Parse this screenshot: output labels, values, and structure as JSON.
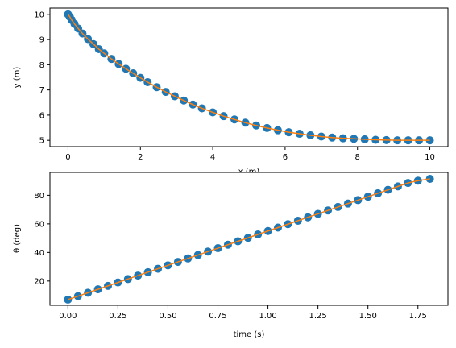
{
  "colors": {
    "scatter": "#1f77b4",
    "line": "#ff7f0e",
    "axes": "#000000"
  },
  "chart_data": [
    {
      "type": "scatter",
      "xlabel": "x (m)",
      "ylabel": "y (m)",
      "xlim": [
        -0.5,
        10.5
      ],
      "ylim": [
        4.75,
        10.25
      ],
      "xticks": [
        0,
        2,
        4,
        6,
        8,
        10
      ],
      "yticks": [
        5,
        6,
        7,
        8,
        9,
        10
      ],
      "grid": false,
      "legend": "none",
      "series": [
        {
          "kind": "scatter",
          "x": [
            0.0,
            0.05,
            0.1,
            0.18,
            0.28,
            0.4,
            0.55,
            0.7,
            0.85,
            1.0,
            1.2,
            1.4,
            1.6,
            1.8,
            2.0,
            2.2,
            2.45,
            2.7,
            2.95,
            3.2,
            3.45,
            3.7,
            4.0,
            4.3,
            4.6,
            4.9,
            5.2,
            5.5,
            5.8,
            6.1,
            6.4,
            6.7,
            7.0,
            7.3,
            7.6,
            7.9,
            8.2,
            8.5,
            8.8,
            9.1,
            9.4,
            9.7,
            10.0
          ],
          "y": [
            10.0,
            9.9,
            9.78,
            9.62,
            9.44,
            9.24,
            9.02,
            8.82,
            8.62,
            8.45,
            8.23,
            8.03,
            7.84,
            7.66,
            7.48,
            7.31,
            7.11,
            6.92,
            6.75,
            6.58,
            6.42,
            6.27,
            6.11,
            5.96,
            5.83,
            5.7,
            5.59,
            5.49,
            5.4,
            5.32,
            5.26,
            5.2,
            5.15,
            5.11,
            5.08,
            5.06,
            5.04,
            5.02,
            5.01,
            5.0,
            5.0,
            5.0,
            5.0
          ]
        },
        {
          "kind": "line",
          "x": [
            0.0,
            0.05,
            0.1,
            0.18,
            0.28,
            0.4,
            0.55,
            0.7,
            0.85,
            1.0,
            1.2,
            1.4,
            1.6,
            1.8,
            2.0,
            2.2,
            2.45,
            2.7,
            2.95,
            3.2,
            3.45,
            3.7,
            4.0,
            4.3,
            4.6,
            4.9,
            5.2,
            5.5,
            5.8,
            6.1,
            6.4,
            6.7,
            7.0,
            7.3,
            7.6,
            7.9,
            8.2,
            8.5,
            8.8,
            9.1,
            9.4,
            9.7,
            10.0
          ],
          "y": [
            10.0,
            9.9,
            9.78,
            9.62,
            9.44,
            9.24,
            9.02,
            8.82,
            8.62,
            8.45,
            8.23,
            8.03,
            7.84,
            7.66,
            7.48,
            7.31,
            7.11,
            6.92,
            6.75,
            6.58,
            6.42,
            6.27,
            6.11,
            5.96,
            5.83,
            5.7,
            5.59,
            5.49,
            5.4,
            5.32,
            5.26,
            5.2,
            5.15,
            5.11,
            5.08,
            5.06,
            5.04,
            5.02,
            5.01,
            5.0,
            5.0,
            5.0,
            5.0
          ]
        }
      ]
    },
    {
      "type": "scatter",
      "xlabel": "time (s)",
      "ylabel": "θ (deg)",
      "xlim": [
        -0.09,
        1.9
      ],
      "ylim": [
        3,
        96
      ],
      "xticks": [
        0.0,
        0.25,
        0.5,
        0.75,
        1.0,
        1.25,
        1.5,
        1.75
      ],
      "xticklabels": [
        "0.00",
        "0.25",
        "0.50",
        "0.75",
        "1.00",
        "1.25",
        "1.50",
        "1.75"
      ],
      "yticks": [
        20,
        40,
        60,
        80
      ],
      "grid": false,
      "legend": "none",
      "series": [
        {
          "kind": "scatter",
          "x": [
            0.0,
            0.05,
            0.1,
            0.15,
            0.2,
            0.25,
            0.3,
            0.35,
            0.4,
            0.45,
            0.5,
            0.55,
            0.6,
            0.65,
            0.7,
            0.75,
            0.8,
            0.85,
            0.9,
            0.95,
            1.0,
            1.05,
            1.1,
            1.15,
            1.2,
            1.25,
            1.3,
            1.35,
            1.4,
            1.45,
            1.5,
            1.55,
            1.6,
            1.65,
            1.7,
            1.75,
            1.81
          ],
          "y": [
            7,
            9.4,
            11.8,
            14.2,
            16.6,
            19.0,
            21.4,
            23.8,
            26.2,
            28.6,
            31.0,
            33.4,
            35.8,
            38.2,
            40.6,
            43.0,
            45.4,
            47.8,
            50.2,
            52.6,
            55.0,
            57.4,
            59.8,
            62.2,
            64.6,
            67.0,
            69.4,
            71.8,
            74.2,
            76.6,
            79.0,
            81.4,
            83.8,
            86.2,
            88.6,
            90.2,
            91.5
          ]
        },
        {
          "kind": "line",
          "x": [
            0.0,
            0.05,
            0.1,
            0.15,
            0.2,
            0.25,
            0.3,
            0.35,
            0.4,
            0.45,
            0.5,
            0.55,
            0.6,
            0.65,
            0.7,
            0.75,
            0.8,
            0.85,
            0.9,
            0.95,
            1.0,
            1.05,
            1.1,
            1.15,
            1.2,
            1.25,
            1.3,
            1.35,
            1.4,
            1.45,
            1.5,
            1.55,
            1.6,
            1.65,
            1.7,
            1.75,
            1.81
          ],
          "y": [
            7,
            9.4,
            11.8,
            14.2,
            16.6,
            19.0,
            21.4,
            23.8,
            26.2,
            28.6,
            31.0,
            33.4,
            35.8,
            38.2,
            40.6,
            43.0,
            45.4,
            47.8,
            50.2,
            52.6,
            55.0,
            57.4,
            59.8,
            62.2,
            64.6,
            67.0,
            69.4,
            71.8,
            74.2,
            76.6,
            79.0,
            81.4,
            83.8,
            86.2,
            88.6,
            90.2,
            91.5
          ]
        }
      ]
    }
  ]
}
